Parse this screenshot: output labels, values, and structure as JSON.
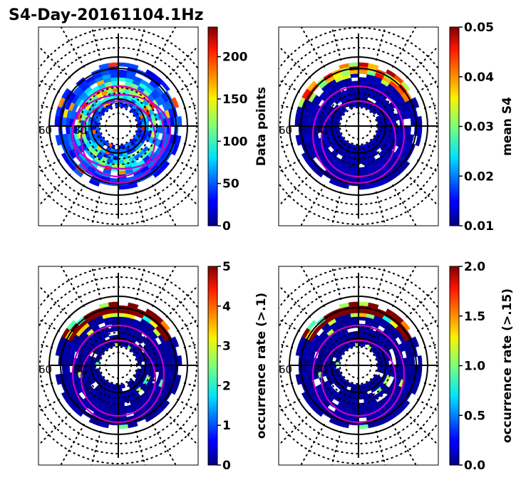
{
  "chart_data": {
    "type": "heatmap",
    "title": "S4-Day-20161104.1Hz",
    "colormap": "jet",
    "panels": [
      {
        "name": "data-points",
        "colorbar_label": "Data points",
        "vmin": 0,
        "vmax": 235,
        "ticks": [
          0,
          50,
          100,
          150,
          200
        ],
        "tick_labels": [
          "0",
          "50",
          "100",
          "150",
          "200"
        ],
        "lat_labels": [
          "60",
          "80"
        ],
        "pattern": "count"
      },
      {
        "name": "mean-s4",
        "colorbar_label": "mean S4",
        "vmin": 0.01,
        "vmax": 0.05,
        "ticks": [
          0.01,
          0.02,
          0.03,
          0.04,
          0.05
        ],
        "tick_labels": [
          "0.01",
          "0.02",
          "0.03",
          "0.04",
          "0.05"
        ],
        "lat_labels": [
          "60",
          "80"
        ],
        "pattern": "mean"
      },
      {
        "name": "occurrence-rate-01",
        "colorbar_label": "occurrence rate (>.1)",
        "vmin": 0,
        "vmax": 5,
        "ticks": [
          0,
          1,
          2,
          3,
          4,
          5
        ],
        "tick_labels": [
          "0",
          "1",
          "2",
          "3",
          "4",
          "5"
        ],
        "lat_labels": [
          "60",
          "80"
        ],
        "pattern": "occ"
      },
      {
        "name": "occurrence-rate-015",
        "colorbar_label": "occurrence rate (>.15)",
        "vmin": 0,
        "vmax": 2,
        "ticks": [
          0,
          0.5,
          1,
          1.5,
          2
        ],
        "tick_labels": [
          "0.0",
          "0.5",
          "1.0",
          "1.5",
          "2.0"
        ],
        "lat_labels": [
          "60",
          "80"
        ],
        "pattern": "occ"
      }
    ]
  }
}
